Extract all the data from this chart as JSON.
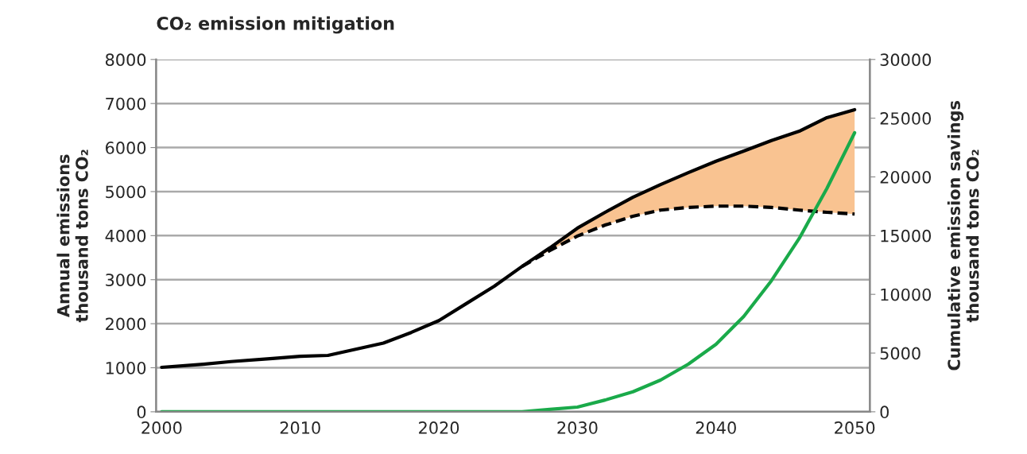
{
  "chart_data": {
    "type": "line",
    "title": "CO₂ emission mitigation",
    "ylabel": "Annual emissions\nthousand tons CO₂",
    "y2label": "Cumulative emission savings\nthousand tons CO₂",
    "xlim": [
      1999.6,
      2051.1
    ],
    "xticks": [
      2000,
      2010,
      2020,
      2030,
      2040,
      2050
    ],
    "ylim": [
      0,
      8000
    ],
    "yticks": [
      0,
      1000,
      2000,
      3000,
      4000,
      5000,
      6000,
      7000,
      8000
    ],
    "y2lim": [
      0,
      30000
    ],
    "y2ticks": [
      0,
      5000,
      10000,
      15000,
      20000,
      25000,
      30000
    ],
    "grid": "y",
    "legend": false,
    "series": [
      {
        "color": "#000000",
        "line_style": "solid",
        "x": [
          2000,
          2003,
          2005,
          2008,
          2010,
          2012,
          2014,
          2016,
          2018,
          2020,
          2022,
          2024,
          2026,
          2028,
          2030,
          2032,
          2034,
          2036,
          2038,
          2040,
          2042,
          2044,
          2046,
          2048,
          2050
        ],
        "values": [
          1010,
          1080,
          1140,
          1210,
          1260,
          1280,
          1420,
          1560,
          1800,
          2070,
          2460,
          2850,
          3300,
          3720,
          4170,
          4530,
          4870,
          5160,
          5430,
          5690,
          5920,
          6160,
          6370,
          6680,
          6860
        ]
      },
      {
        "color": "#000000",
        "line_style": "dashed",
        "x": [
          2026,
          2028,
          2030,
          2032,
          2034,
          2036,
          2038,
          2040,
          2042,
          2044,
          2046,
          2048,
          2050
        ],
        "values": [
          3300,
          3660,
          3990,
          4240,
          4440,
          4580,
          4640,
          4670,
          4670,
          4640,
          4580,
          4530,
          4490
        ],
        "lower": [
          3300,
          3660,
          3990,
          4240,
          4440,
          4580,
          4640,
          4670,
          4670,
          4640,
          4580,
          4530,
          4490
        ],
        "upper": [
          3300,
          3720,
          4170,
          4530,
          4870,
          5160,
          5430,
          5690,
          5920,
          6160,
          6370,
          6680,
          6860
        ]
      },
      {
        "color": "#1aaa4a",
        "line_style": "solid",
        "axis": "y2",
        "x": [
          2000,
          2010,
          2020,
          2024,
          2026,
          2028,
          2030,
          2032,
          2034,
          2036,
          2038,
          2040,
          2042,
          2044,
          2046,
          2048,
          2050
        ],
        "values": [
          0,
          0,
          0,
          0,
          0,
          200,
          400,
          1000,
          1700,
          2700,
          4060,
          5750,
          8120,
          11170,
          14760,
          19020,
          23760
        ]
      }
    ]
  }
}
